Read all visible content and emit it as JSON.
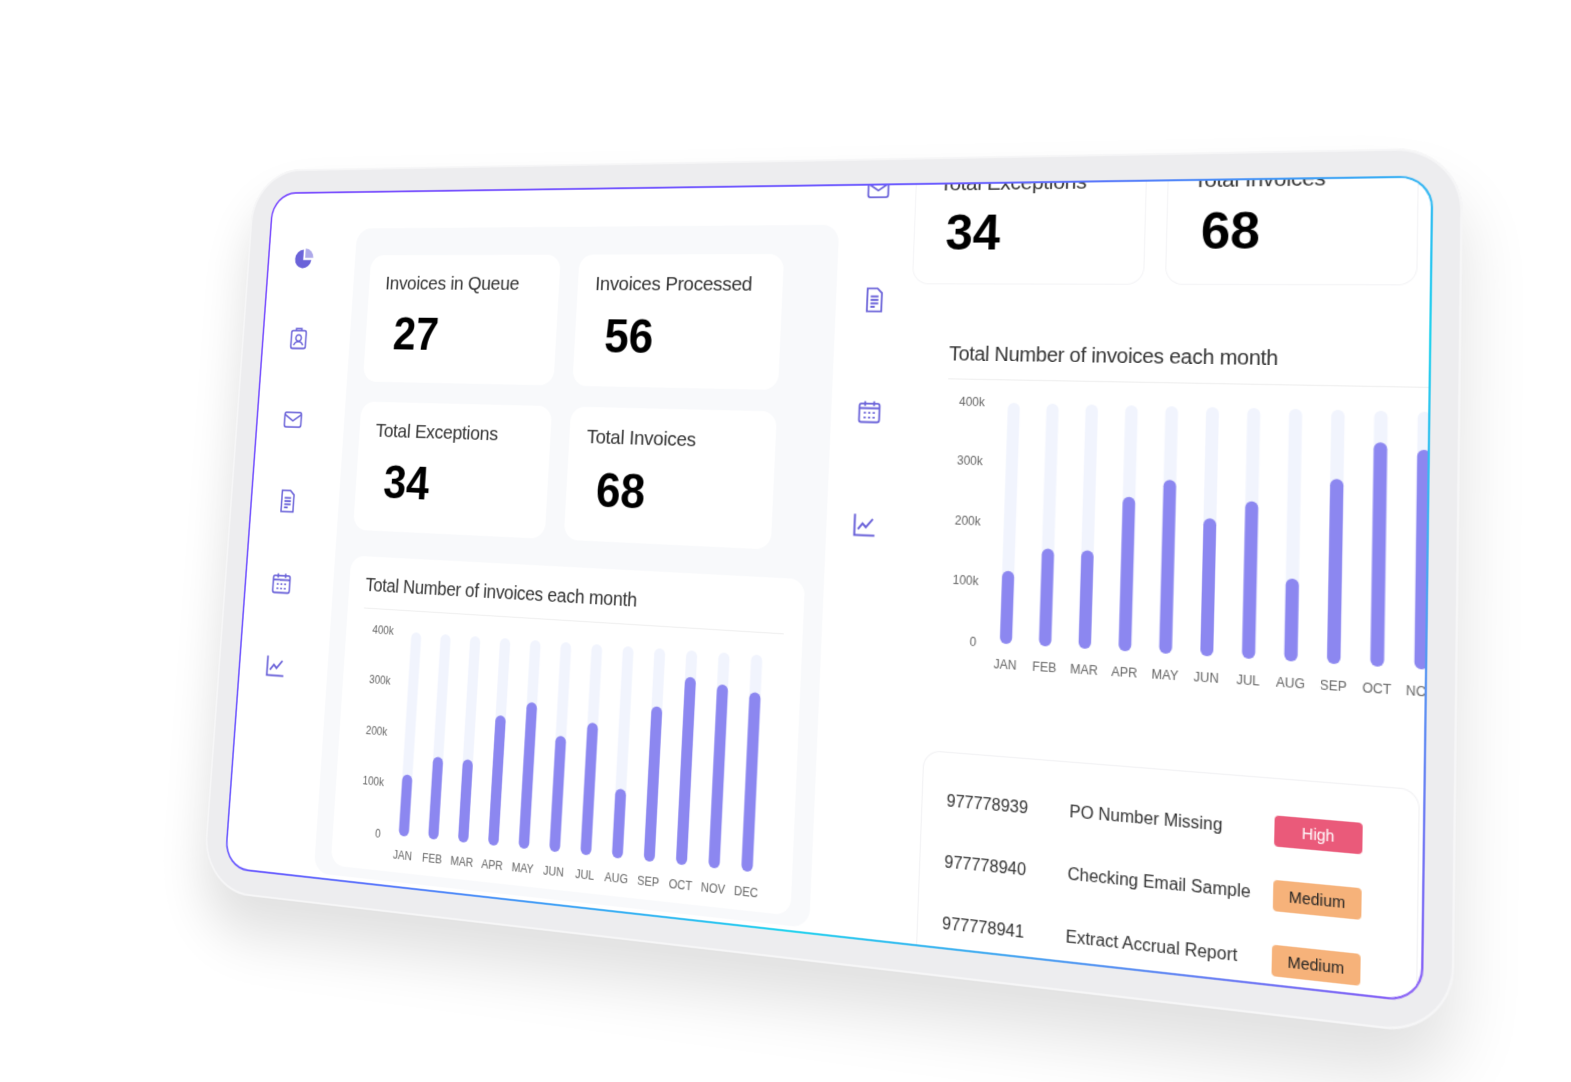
{
  "nav": {
    "items": [
      "dashboard",
      "contacts",
      "mail",
      "documents",
      "calendar",
      "analytics"
    ],
    "icons": [
      "pie-chart-icon",
      "id-badge-icon",
      "mail-icon",
      "document-icon",
      "calendar-icon",
      "line-chart-icon"
    ]
  },
  "stats": [
    {
      "label": "Invoices in Queue",
      "value": "27"
    },
    {
      "label": "Invoices Processed",
      "value": "56"
    },
    {
      "label": "Total Exceptions",
      "value": "34"
    },
    {
      "label": "Total Invoices",
      "value": "68"
    }
  ],
  "right_stats": [
    {
      "label": "Total Exceptions",
      "value": "34"
    },
    {
      "label": "Total Invoices",
      "value": "68"
    }
  ],
  "chart_title": "Total Number of invoices each month",
  "chart_data": [
    {
      "type": "bar",
      "title": "Total Number of invoices each month",
      "categories": [
        "JAN",
        "FEB",
        "MAR",
        "APR",
        "MAY",
        "JUN",
        "JUL",
        "AUG",
        "SEP",
        "OCT",
        "NOV",
        "DEC"
      ],
      "values": [
        120,
        160,
        160,
        250,
        280,
        220,
        250,
        130,
        290,
        350,
        340,
        330
      ],
      "ytick_labels": [
        "0",
        "100k",
        "200k",
        "300k",
        "400k"
      ],
      "ylim": [
        0,
        400
      ],
      "grid": false,
      "bar_color": "#8c87f0",
      "track_color": "#f1f4fd"
    },
    {
      "type": "bar",
      "title": "Total Number of invoices each month",
      "categories": [
        "JAN",
        "FEB",
        "MAR",
        "APR",
        "MAY",
        "JUN",
        "JUL",
        "AUG",
        "SEP",
        "OCT",
        "NOV"
      ],
      "values": [
        120,
        160,
        160,
        250,
        280,
        220,
        250,
        130,
        290,
        350,
        340
      ],
      "ytick_labels": [
        "0",
        "100k",
        "200k",
        "300k",
        "400k"
      ],
      "ylim": [
        0,
        400
      ],
      "grid": false,
      "bar_color": "#8c87f0",
      "track_color": "#f1f4fd"
    }
  ],
  "exceptions": [
    {
      "id": "977778939",
      "desc": "PO Number Missing",
      "priority": "High"
    },
    {
      "id": "977778940",
      "desc": "Checking Email Sample",
      "priority": "Medium"
    },
    {
      "id": "977778941",
      "desc": "Extract Accrual Report",
      "priority": "Medium"
    }
  ],
  "colors": {
    "accent": "#6b63d9",
    "high": "#ea5a7a",
    "medium": "#f6b27a"
  }
}
